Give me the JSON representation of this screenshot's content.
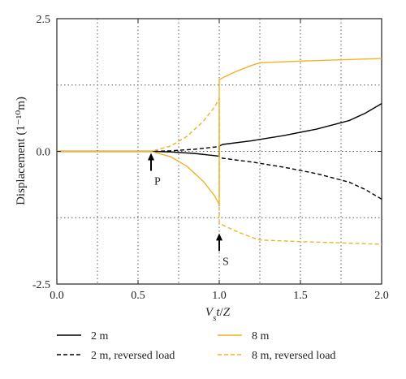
{
  "chart_data": {
    "type": "line",
    "title": "",
    "xlabel": "V_s t/Z",
    "ylabel": "Displacement (1⁻¹⁰m)",
    "xlim": [
      0.0,
      2.0
    ],
    "ylim": [
      -2.5,
      2.5
    ],
    "grid": true,
    "legend_position": "bottom",
    "x_ticks": [
      "0.0",
      "0.5",
      "1.0",
      "1.5",
      "2.0"
    ],
    "y_ticks": [
      "2.5",
      "0.0",
      "-2.5"
    ],
    "annotations": [
      {
        "label": "P",
        "x": 0.58,
        "y": 0.0
      },
      {
        "label": "S",
        "x": 1.0,
        "y": -1.45
      }
    ],
    "colors": {
      "black": "#000000",
      "orange": "#f0b323",
      "axis": "#222222",
      "grid": "#555555"
    },
    "series": [
      {
        "name": "2 m",
        "color": "#000000",
        "dash": "solid",
        "x": [
          0.0,
          0.58,
          0.7,
          0.85,
          1.0,
          1.0,
          1.02,
          1.2,
          1.4,
          1.6,
          1.8,
          1.9,
          2.0
        ],
        "y": [
          0.0,
          0.0,
          -0.01,
          -0.04,
          -0.09,
          0.1,
          0.13,
          0.2,
          0.3,
          0.42,
          0.58,
          0.72,
          0.9
        ]
      },
      {
        "name": "2 m, reversed load",
        "color": "#000000",
        "dash": "dashed",
        "x": [
          0.0,
          0.58,
          0.7,
          0.85,
          1.0,
          1.0,
          1.02,
          1.2,
          1.4,
          1.6,
          1.8,
          1.9,
          2.0
        ],
        "y": [
          0.0,
          0.0,
          0.01,
          0.04,
          0.09,
          -0.1,
          -0.13,
          -0.2,
          -0.3,
          -0.42,
          -0.58,
          -0.72,
          -0.9
        ]
      },
      {
        "name": "8 m",
        "color": "#f0b323",
        "dash": "solid",
        "x": [
          0.0,
          0.58,
          0.7,
          0.8,
          0.9,
          0.97,
          1.0,
          1.0,
          1.03,
          1.1,
          1.2,
          1.25,
          1.5,
          2.0
        ],
        "y": [
          0.0,
          0.0,
          -0.1,
          -0.28,
          -0.56,
          -0.83,
          -1.0,
          1.35,
          1.4,
          1.5,
          1.62,
          1.67,
          1.7,
          1.75
        ]
      },
      {
        "name": "8 m, reversed load",
        "color": "#f0b323",
        "dash": "dashed",
        "x": [
          0.0,
          0.58,
          0.7,
          0.8,
          0.9,
          0.97,
          1.0,
          1.0,
          1.03,
          1.1,
          1.2,
          1.25,
          1.5,
          2.0
        ],
        "y": [
          0.0,
          0.0,
          0.1,
          0.28,
          0.56,
          0.83,
          1.0,
          -1.35,
          -1.4,
          -1.5,
          -1.62,
          -1.67,
          -1.7,
          -1.75
        ]
      }
    ]
  }
}
